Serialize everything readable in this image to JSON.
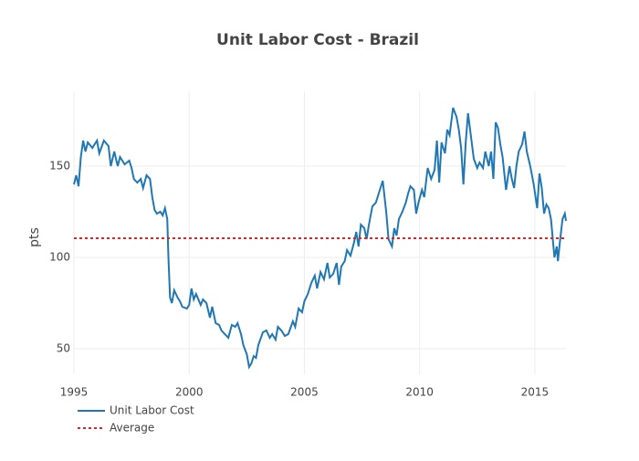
{
  "chart_data": {
    "type": "line",
    "title": "Unit Labor Cost - Brazil",
    "y_label": "pts",
    "xlim": [
      1995,
      2016.35
    ],
    "xticks": [
      1995,
      2000,
      2005,
      2010,
      2015
    ],
    "ylim": [
      36,
      191
    ],
    "yticks": [
      50,
      100,
      150
    ],
    "grid": true,
    "legend": "bottom-left",
    "series": [
      {
        "name": "Unit Labor Cost",
        "color": "#1f77b4",
        "dash": "solid",
        "x": [
          1995.0,
          1995.1,
          1995.2,
          1995.3,
          1995.4,
          1995.5,
          1995.6,
          1995.8,
          1996.0,
          1996.1,
          1996.3,
          1996.5,
          1996.6,
          1996.75,
          1996.9,
          1997.0,
          1997.2,
          1997.4,
          1997.5,
          1997.6,
          1997.75,
          1997.9,
          1998.0,
          1998.15,
          1998.3,
          1998.4,
          1998.5,
          1998.6,
          1998.75,
          1998.85,
          1998.95,
          1999.05,
          1999.1,
          1999.17,
          1999.25,
          1999.35,
          1999.5,
          1999.6,
          1999.7,
          1999.9,
          2000.0,
          2000.1,
          2000.2,
          2000.3,
          2000.5,
          2000.6,
          2000.75,
          2000.9,
          2001.0,
          2001.15,
          2001.3,
          2001.4,
          2001.55,
          2001.7,
          2001.85,
          2002.0,
          2002.1,
          2002.25,
          2002.35,
          2002.5,
          2002.6,
          2002.7,
          2002.8,
          2002.9,
          2003.0,
          2003.2,
          2003.35,
          2003.5,
          2003.6,
          2003.75,
          2003.85,
          2004.0,
          2004.15,
          2004.3,
          2004.5,
          2004.6,
          2004.75,
          2004.9,
          2005.0,
          2005.15,
          2005.3,
          2005.45,
          2005.55,
          2005.7,
          2005.85,
          2006.0,
          2006.1,
          2006.25,
          2006.4,
          2006.5,
          2006.6,
          2006.75,
          2006.85,
          2007.0,
          2007.15,
          2007.25,
          2007.35,
          2007.45,
          2007.6,
          2007.7,
          2007.8,
          2007.95,
          2008.1,
          2008.25,
          2008.4,
          2008.55,
          2008.65,
          2008.8,
          2008.9,
          2009.0,
          2009.1,
          2009.25,
          2009.4,
          2009.5,
          2009.6,
          2009.75,
          2009.85,
          2009.95,
          2010.1,
          2010.2,
          2010.35,
          2010.5,
          2010.65,
          2010.75,
          2010.85,
          2010.95,
          2011.1,
          2011.2,
          2011.3,
          2011.45,
          2011.6,
          2011.7,
          2011.8,
          2011.9,
          2012.0,
          2012.1,
          2012.2,
          2012.35,
          2012.5,
          2012.6,
          2012.75,
          2012.85,
          2013.0,
          2013.1,
          2013.2,
          2013.3,
          2013.4,
          2013.5,
          2013.6,
          2013.75,
          2013.9,
          2014.0,
          2014.1,
          2014.2,
          2014.3,
          2014.45,
          2014.55,
          2014.65,
          2014.8,
          2014.95,
          2015.1,
          2015.2,
          2015.3,
          2015.4,
          2015.5,
          2015.6,
          2015.7,
          2015.85,
          2015.95,
          2016.0,
          2016.1,
          2016.2,
          2016.3,
          2016.35
        ],
        "values": [
          140,
          145,
          139,
          155,
          164,
          158,
          163,
          160,
          164,
          157,
          164,
          161,
          150,
          158,
          150,
          155,
          151,
          153,
          149,
          143,
          141,
          143,
          138,
          145,
          143,
          133,
          126,
          124,
          125,
          123,
          127,
          121,
          100,
          78,
          75,
          82,
          78,
          76,
          73,
          72,
          74,
          83,
          77,
          80,
          74,
          77,
          75,
          67,
          73,
          64,
          63,
          60,
          58,
          56,
          63,
          62,
          64,
          58,
          52,
          47,
          40,
          42,
          46,
          45,
          52,
          59,
          60,
          56,
          58,
          55,
          62,
          60,
          57,
          58,
          65,
          62,
          72,
          70,
          76,
          80,
          86,
          90,
          83,
          92,
          88,
          97,
          89,
          91,
          97,
          85,
          95,
          98,
          104,
          101,
          108,
          114,
          106,
          118,
          116,
          110,
          118,
          128,
          130,
          136,
          142,
          125,
          110,
          106,
          116,
          112,
          121,
          125,
          130,
          135,
          139,
          137,
          124,
          130,
          137,
          133,
          149,
          143,
          148,
          164,
          141,
          163,
          157,
          170,
          167,
          182,
          177,
          170,
          160,
          140,
          163,
          179,
          169,
          154,
          149,
          152,
          149,
          158,
          150,
          158,
          143,
          174,
          171,
          162,
          155,
          137,
          150,
          143,
          138,
          150,
          158,
          162,
          169,
          158,
          150,
          140,
          127,
          146,
          138,
          124,
          129,
          127,
          121,
          100,
          106,
          98,
          110,
          121,
          124,
          120
        ]
      },
      {
        "name": "Average",
        "color": "#d62728",
        "dash": "dot",
        "x": [
          1995,
          2016.35
        ],
        "values": [
          110.5,
          110.5
        ]
      }
    ]
  }
}
